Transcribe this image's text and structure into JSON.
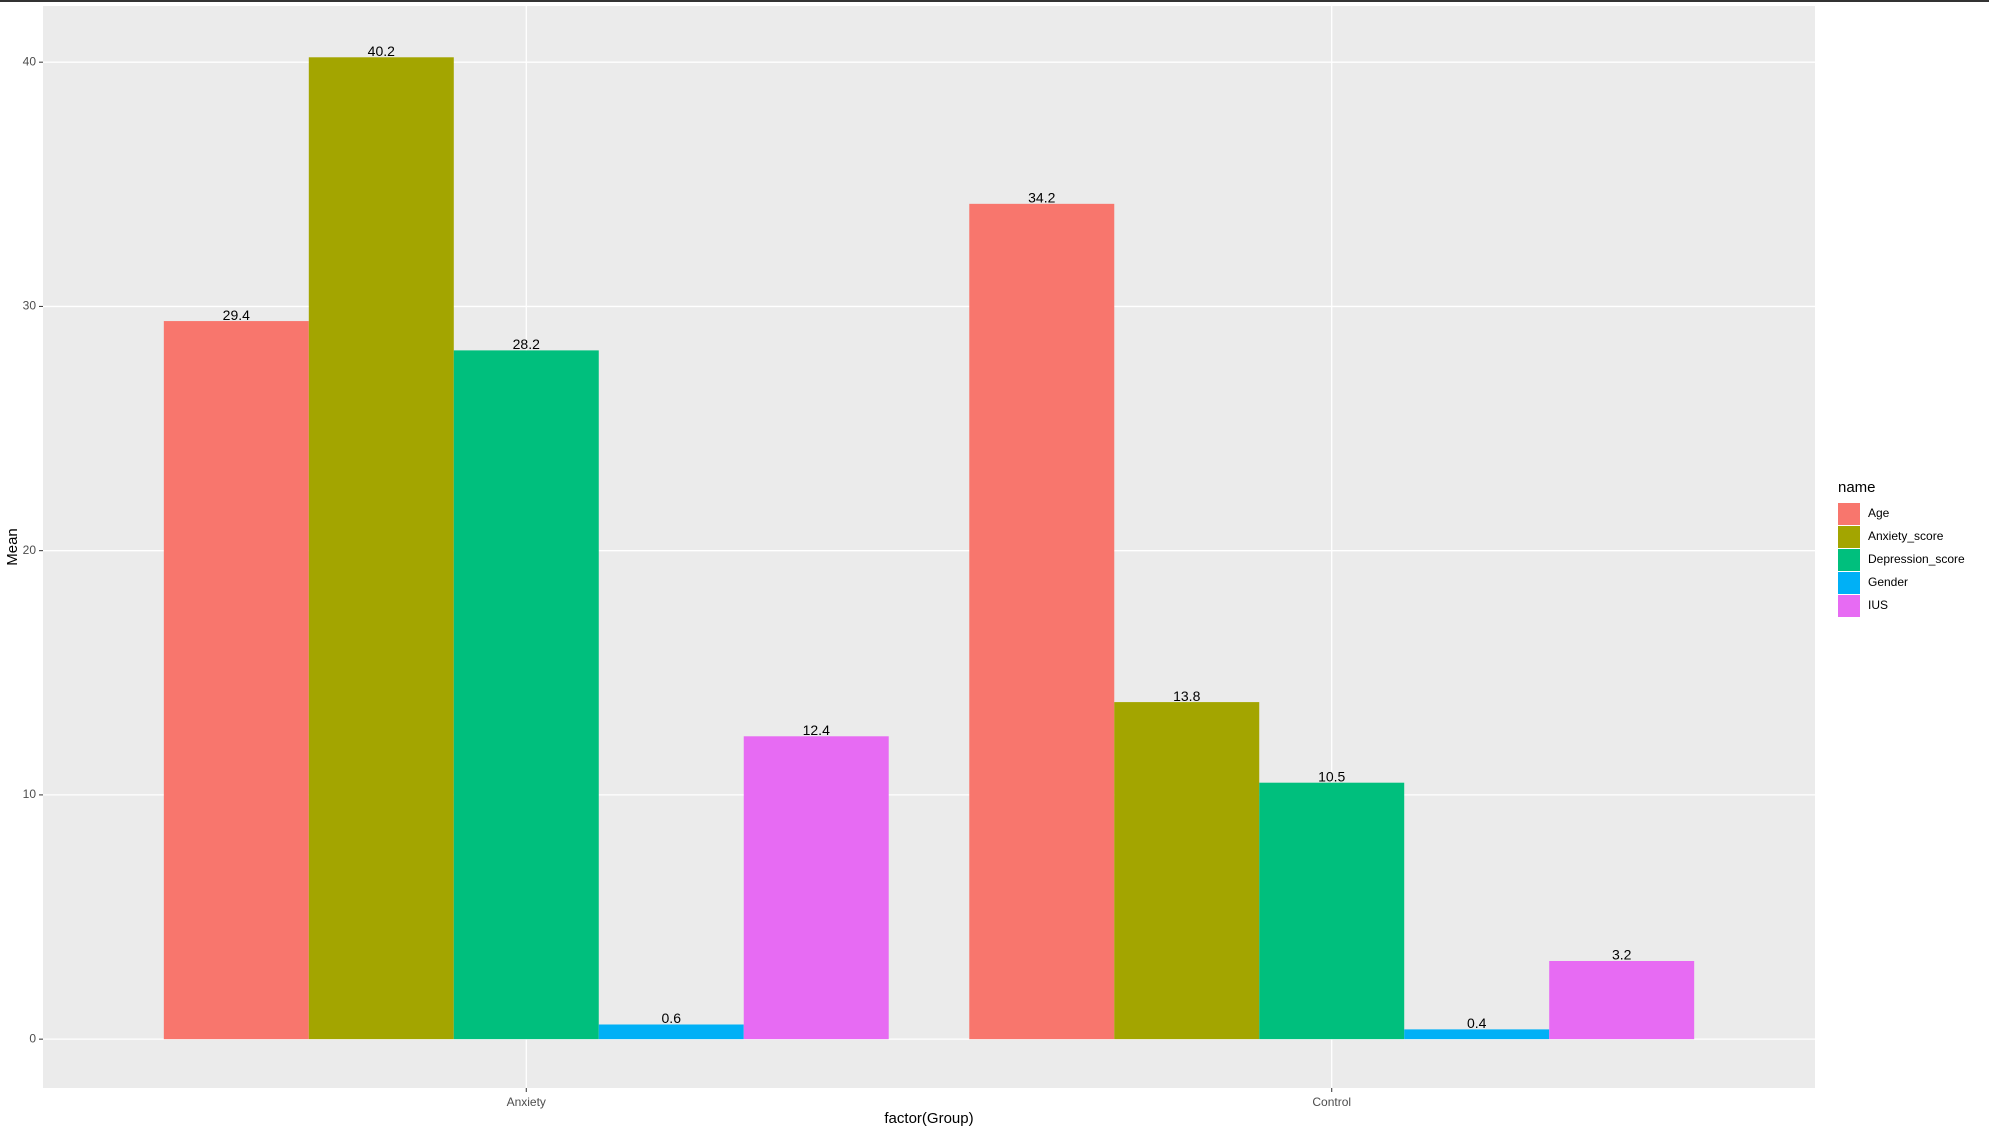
{
  "chart_data": {
    "type": "bar",
    "x_label": "factor(Group)",
    "y_label": "Mean",
    "categories": [
      "Anxiety",
      "Control"
    ],
    "legend_title": "name",
    "series": [
      {
        "name": "Age",
        "color": "#F8766D",
        "values": [
          29.4,
          34.2
        ]
      },
      {
        "name": "Anxiety_score",
        "color": "#A3A500",
        "values": [
          40.2,
          13.8
        ]
      },
      {
        "name": "Depression_score",
        "color": "#00BF7D",
        "values": [
          28.2,
          10.5
        ]
      },
      {
        "name": "Gender",
        "color": "#00B0F6",
        "values": [
          0.6,
          0.4
        ]
      },
      {
        "name": "IUS",
        "color": "#E76BF3",
        "values": [
          12.4,
          3.2
        ]
      }
    ],
    "ylim": [
      -2.0,
      42.3
    ],
    "yticks": [
      0,
      10,
      20,
      30,
      40
    ],
    "grid": true,
    "legend_position": "right"
  }
}
